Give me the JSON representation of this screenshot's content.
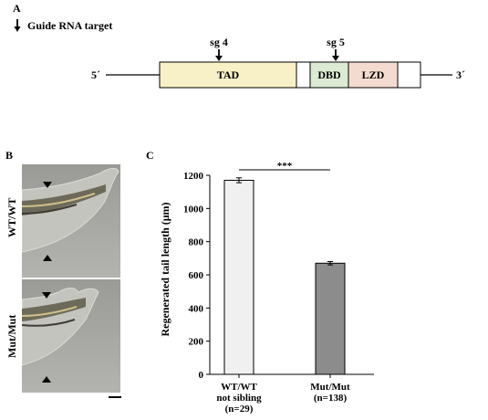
{
  "panel_a": {
    "letter": "A",
    "legend_text": "Guide RNA target",
    "five_prime": "5´",
    "three_prime": "3´",
    "domains": [
      {
        "label": "TAD",
        "color": "#f8f1c7"
      },
      {
        "label": "DBD",
        "color": "#dcead3"
      },
      {
        "label": "LZD",
        "color": "#f3dccf"
      }
    ],
    "guides": [
      {
        "label": "sg 4"
      },
      {
        "label": "sg 5"
      }
    ]
  },
  "panel_b": {
    "letter": "B",
    "images": [
      {
        "label": "WT/WT"
      },
      {
        "label": "Mut/Mut"
      }
    ]
  },
  "panel_c": {
    "letter": "C",
    "chart_data": {
      "type": "bar",
      "categories": [
        "WT/WT\nnot sibling\n(n=29)",
        "Mut/Mut\n(n=138)"
      ],
      "values": [
        1170,
        670
      ],
      "errors": [
        15,
        10
      ],
      "colors": [
        "#f0f0f0",
        "#8c8c8c"
      ],
      "ylabel": "Regenerated tail length (μm)",
      "ylim": [
        0,
        1200
      ],
      "yticks": [
        0,
        200,
        400,
        600,
        800,
        1000,
        1200
      ],
      "significance": "***",
      "grid": false
    }
  }
}
